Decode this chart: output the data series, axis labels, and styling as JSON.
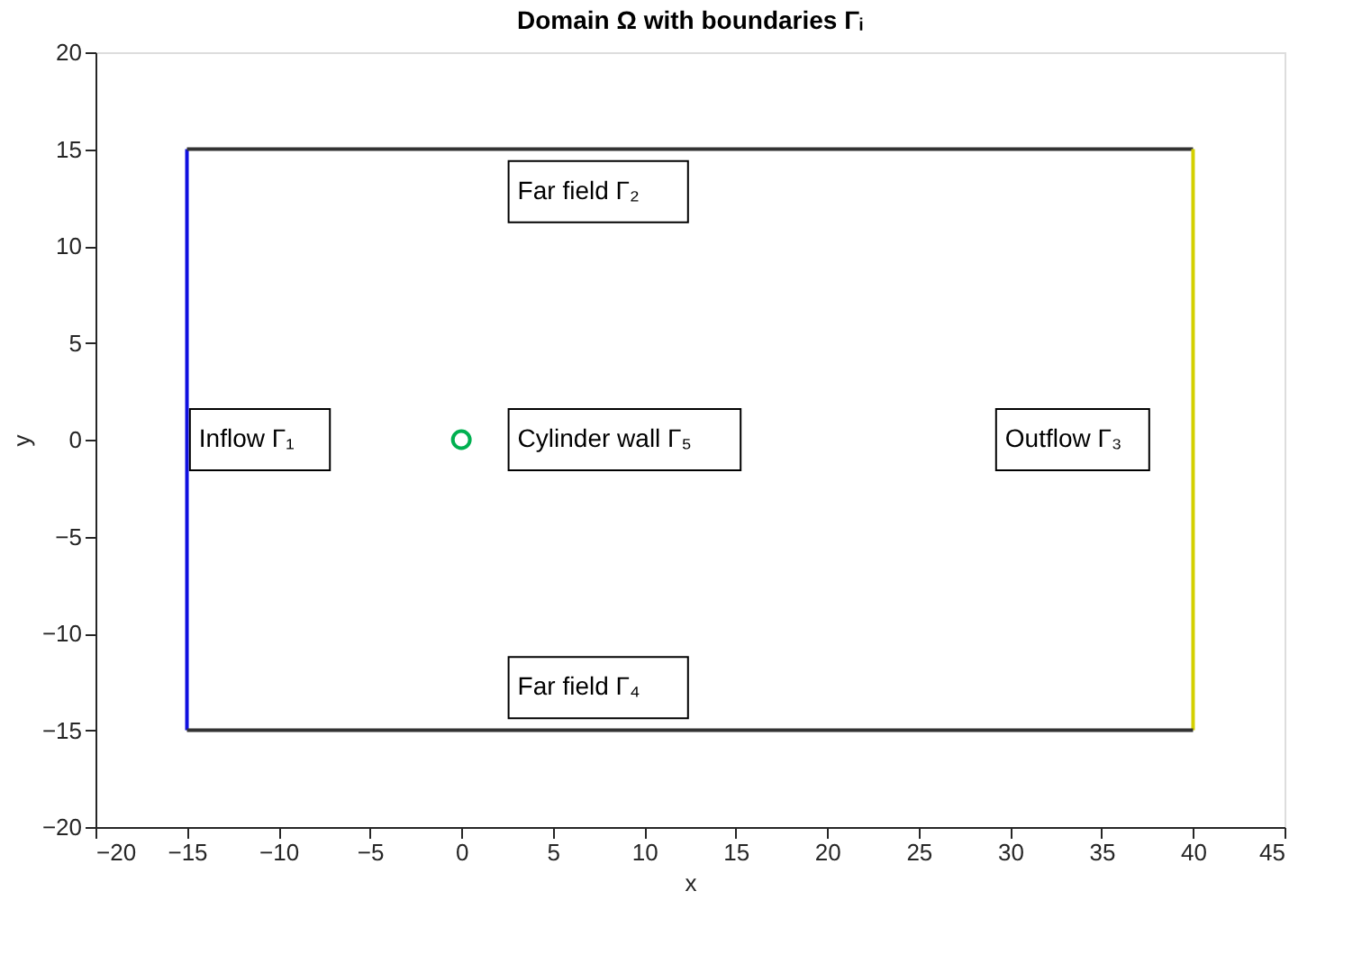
{
  "chart_data": {
    "type": "line",
    "title": "Domain Ω with boundaries Γᵢ",
    "xlabel": "x",
    "ylabel": "y",
    "xlim": [
      -20,
      45
    ],
    "ylim": [
      -20,
      20
    ],
    "xticks": [
      -20,
      -15,
      -10,
      -5,
      0,
      5,
      10,
      15,
      20,
      25,
      30,
      35,
      40,
      45
    ],
    "yticks": [
      -20,
      -15,
      -10,
      -5,
      0,
      5,
      10,
      15,
      20
    ],
    "grid": false,
    "line_style": "solid",
    "series": [
      {
        "color": "#1010e0",
        "x": [
          -15,
          -15
        ],
        "values": [
          -15,
          15
        ]
      },
      {
        "color": "#333333",
        "x": [
          -15,
          40
        ],
        "values": [
          15,
          15
        ]
      },
      {
        "color": "#d4d000",
        "x": [
          40,
          40
        ],
        "values": [
          15,
          -15
        ]
      },
      {
        "color": "#333333",
        "x": [
          40,
          -15
        ],
        "values": [
          -15,
          -15
        ]
      },
      {
        "type": "scatter",
        "marker": "circle",
        "color": "#00b050",
        "x": [
          0
        ],
        "values": [
          0
        ]
      }
    ],
    "annotations": [
      "Inflow Γ₁",
      "Far field Γ₂",
      "Cylinder wall Γ₅",
      "Outflow Γ₃",
      "Far field Γ₄"
    ]
  }
}
